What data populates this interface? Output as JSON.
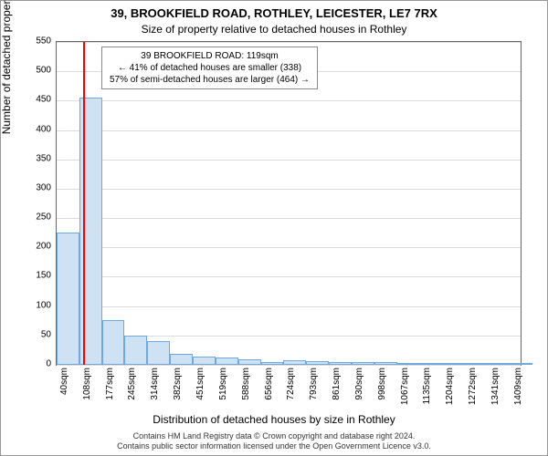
{
  "title": "39, BROOKFIELD ROAD, ROTHLEY, LEICESTER, LE7 7RX",
  "subtitle": "Size of property relative to detached houses in Rothley",
  "ylabel": "Number of detached properties",
  "xlabel": "Distribution of detached houses by size in Rothley",
  "footer_line1": "Contains HM Land Registry data © Crown copyright and database right 2024.",
  "footer_line2": "Contains public sector information licensed under the Open Government Licence v3.0.",
  "annotation": {
    "line1": "39 BROOKFIELD ROAD: 119sqm",
    "line2": "← 41% of detached houses are smaller (338)",
    "line3": "57% of semi-detached houses are larger (464) →"
  },
  "chart": {
    "type": "bar",
    "background_color": "#ffffff",
    "grid_color": "#dcdcdc",
    "bar_fill": "#cfe2f3",
    "bar_border": "#6fa8dc",
    "marker_color": "#ff0000",
    "marker_value": 119,
    "ylim": [
      0,
      550
    ],
    "ytick_step": 50,
    "label_fontsize": 12,
    "tick_fontsize": 10,
    "categories_min": 40,
    "categories_max": 1440,
    "xtick_labels": [
      "40sqm",
      "108sqm",
      "177sqm",
      "245sqm",
      "314sqm",
      "382sqm",
      "451sqm",
      "519sqm",
      "588sqm",
      "656sqm",
      "724sqm",
      "793sqm",
      "861sqm",
      "930sqm",
      "998sqm",
      "1067sqm",
      "1135sqm",
      "1204sqm",
      "1272sqm",
      "1341sqm",
      "1409sqm"
    ],
    "xtick_values": [
      40,
      108,
      177,
      245,
      314,
      382,
      451,
      519,
      588,
      656,
      724,
      793,
      861,
      930,
      998,
      1067,
      1135,
      1204,
      1272,
      1341,
      1409
    ],
    "values": [
      225,
      455,
      76,
      50,
      40,
      18,
      14,
      12,
      10,
      5,
      8,
      7,
      5,
      4,
      5,
      3,
      3,
      2,
      2,
      3,
      2
    ],
    "bar_bins": [
      40,
      108,
      177,
      245,
      314,
      382,
      451,
      519,
      588,
      656,
      724,
      793,
      861,
      930,
      998,
      1067,
      1135,
      1204,
      1272,
      1341,
      1409,
      1477
    ]
  }
}
